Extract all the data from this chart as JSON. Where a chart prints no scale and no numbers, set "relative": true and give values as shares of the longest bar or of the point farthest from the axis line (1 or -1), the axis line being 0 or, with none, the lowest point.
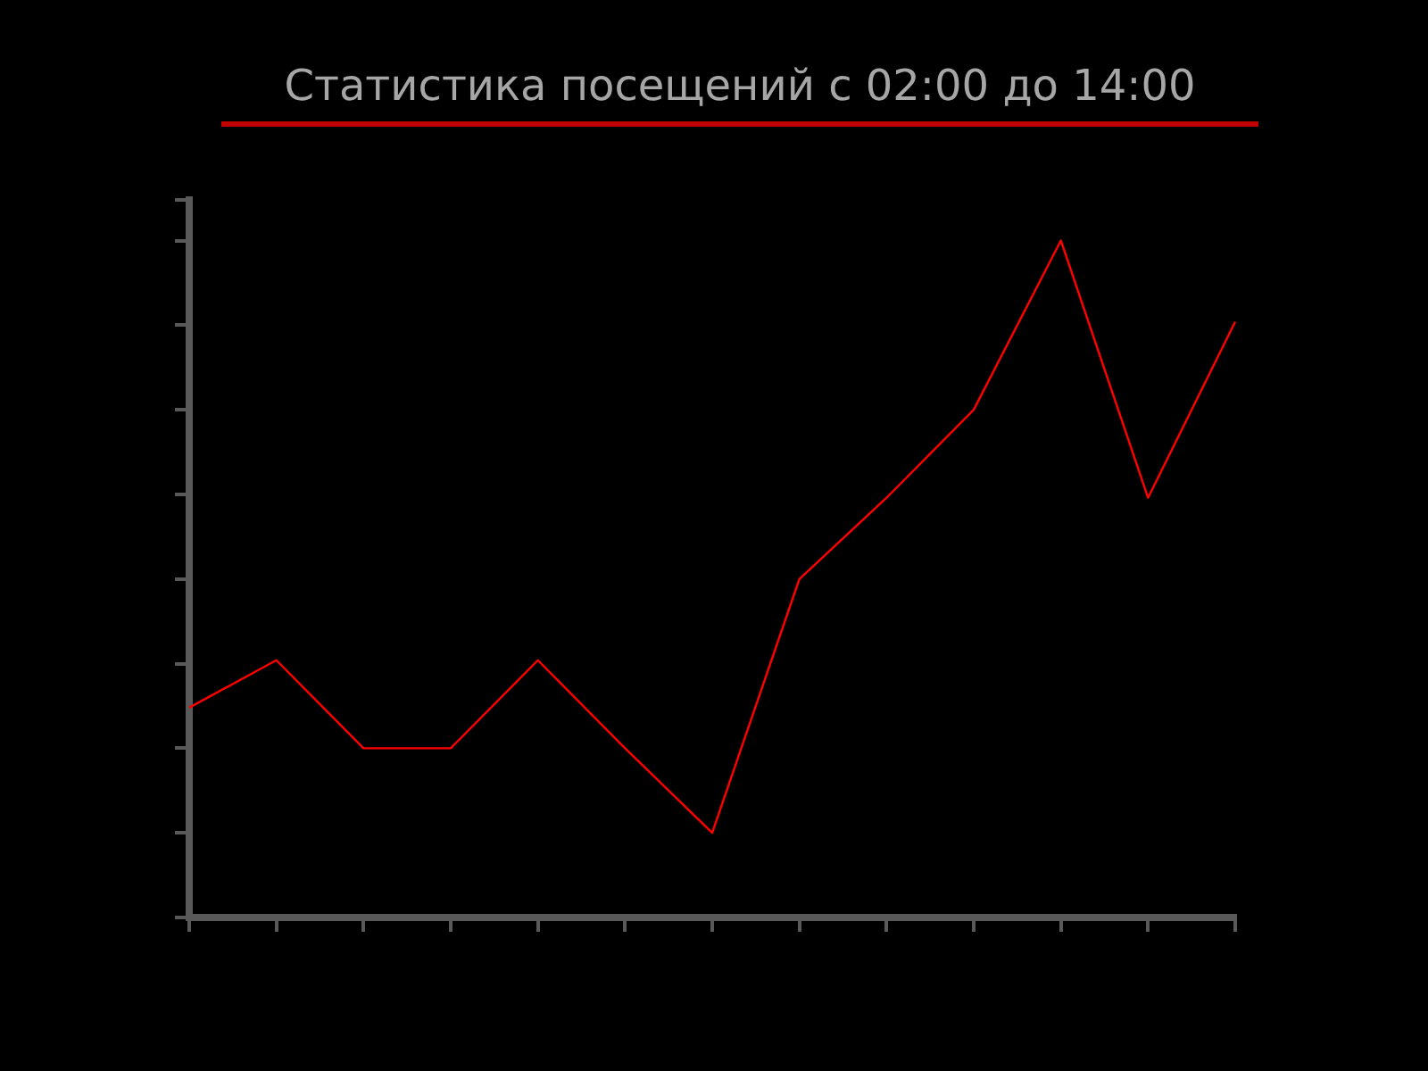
{
  "chart_data": {
    "type": "line",
    "title": "Статистика посещений с 02:00 до 14:00",
    "relative": true,
    "categories": [
      null,
      null,
      null,
      null,
      null,
      null,
      null,
      null,
      null,
      null,
      null,
      null,
      null
    ],
    "series": [
      {
        "color": "#ff0000",
        "values": [
          0.31,
          0.38,
          0.25,
          0.25,
          0.38,
          0.25,
          0.125,
          0.5,
          0.62,
          0.75,
          1,
          0.62,
          0.88
        ]
      }
    ],
    "tick_labels": false,
    "grid": false,
    "legend": false,
    "marker": "none",
    "line_style": "solid"
  }
}
